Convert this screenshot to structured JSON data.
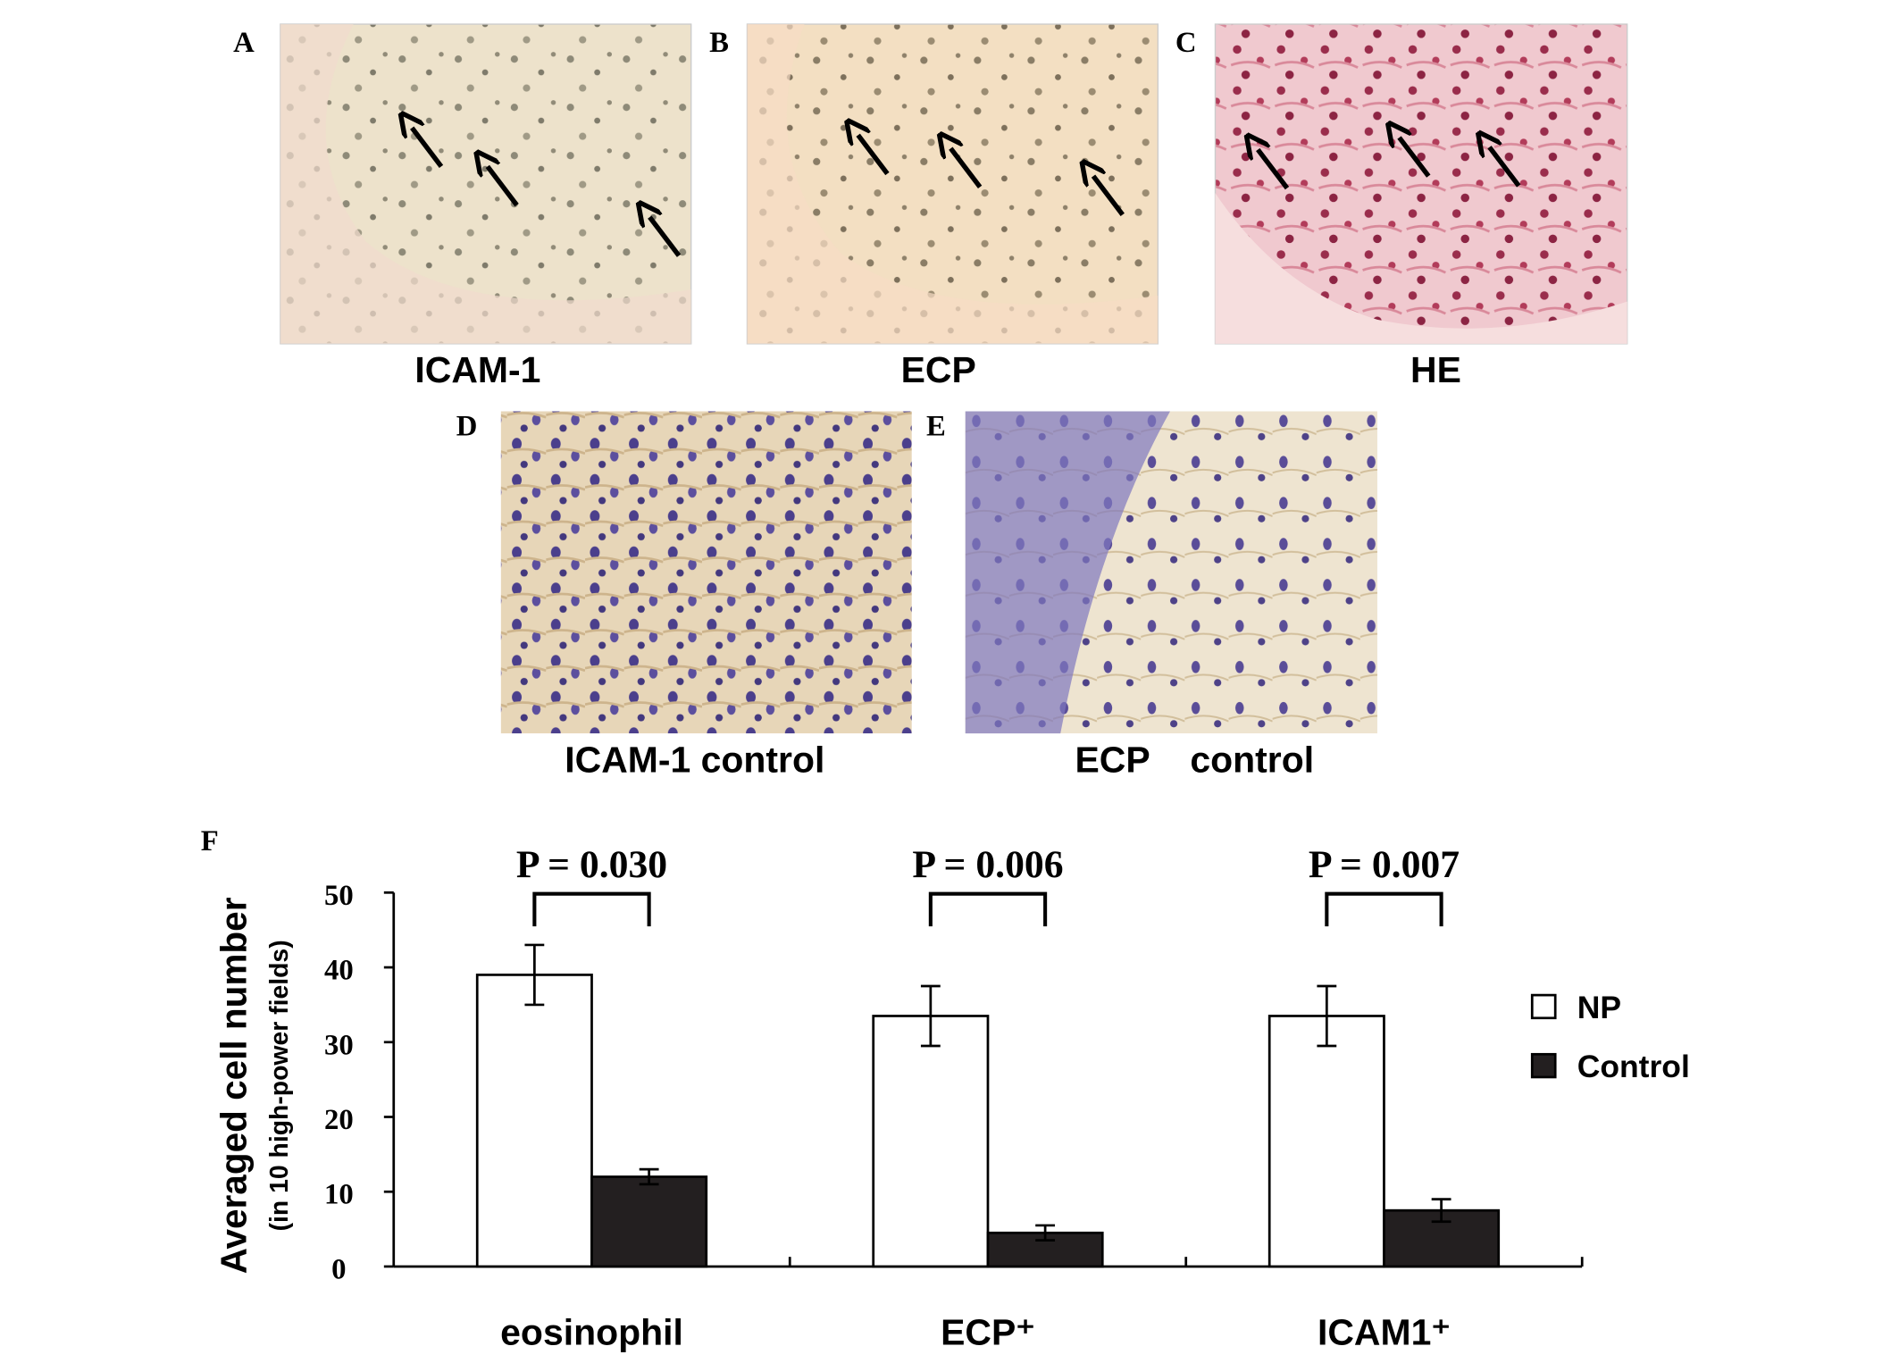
{
  "panels": [
    {
      "label": "A",
      "caption": "ICAM-1"
    },
    {
      "label": "B",
      "caption": "ECP"
    },
    {
      "label": "C",
      "caption": "HE"
    },
    {
      "label": "D",
      "caption": "ICAM-1 control"
    },
    {
      "label": "E",
      "caption": "ECP    control"
    }
  ],
  "chart_data": {
    "type": "bar",
    "panel_label": "F",
    "ylabel": "Averaged cell number",
    "ylabel_sub": "(in 10 high-power fields)",
    "categories": [
      "eosinophil",
      "ECP⁺",
      "ICAM1⁺"
    ],
    "series": [
      {
        "name": "NP",
        "color": "#ffffff",
        "values": [
          39,
          33.5,
          33.5
        ],
        "errors": [
          4,
          4,
          4
        ]
      },
      {
        "name": "Control",
        "color": "#231f20",
        "values": [
          12,
          4.5,
          7.5
        ],
        "errors": [
          1,
          1,
          1.5
        ]
      }
    ],
    "annotations": [
      "P = 0.030",
      "P = 0.006",
      "P = 0.007"
    ],
    "ylim": [
      0,
      50
    ],
    "yticks": [
      0,
      10,
      20,
      30,
      40,
      50
    ]
  }
}
